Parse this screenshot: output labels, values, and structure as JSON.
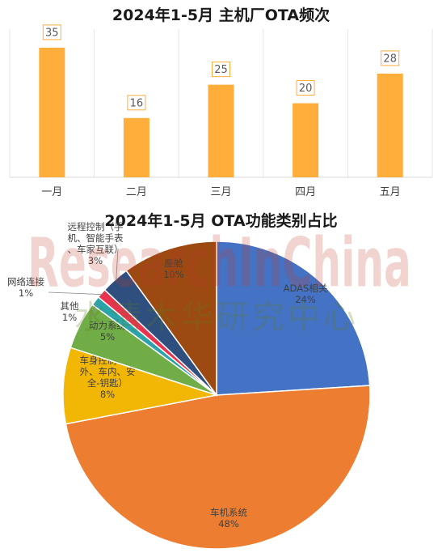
{
  "charts": {
    "bar_title": "2024年1-5月 主机厂OTA频次",
    "pie_title": "2024年1-5月 OTA功能类别占比"
  },
  "watermark": {
    "line1": "ResearchInChina",
    "line2": "水清木华研究中心"
  },
  "chart_data": [
    {
      "type": "bar",
      "title": "2024年1-5月 主机厂OTA频次",
      "categories": [
        "一月",
        "二月",
        "三月",
        "四月",
        "五月"
      ],
      "values": [
        35,
        16,
        25,
        20,
        28
      ],
      "ylim": [
        0,
        40
      ],
      "grid": false,
      "colors": {
        "bar": "#FFAE3C",
        "label_border": "#FFAE3C"
      }
    },
    {
      "type": "pie",
      "title": "2024年1-5月 OTA功能类别占比",
      "slices": [
        {
          "label": "ADAS相关",
          "value": 24,
          "pct_text": "24%",
          "color": "#4472C4"
        },
        {
          "label": "车机系统",
          "value": 48,
          "pct_text": "48%",
          "color": "#ED7D31"
        },
        {
          "label": "车身控制（车外、车内、安全-钥匙）",
          "value": 8,
          "pct_text": "8%",
          "color": "#F2B705"
        },
        {
          "label": "动力系统",
          "value": 5,
          "pct_text": "5%",
          "color": "#70AD47"
        },
        {
          "label": "其他",
          "value": 1,
          "pct_text": "1%",
          "color": "#2BA3A8"
        },
        {
          "label": "网络连接",
          "value": 1,
          "pct_text": "1%",
          "color": "#E8344E"
        },
        {
          "label": "远程控制（手机、智能手表、车家互联）",
          "value": 3,
          "pct_text": "3%",
          "color": "#2F4F7F"
        },
        {
          "label": "座舱",
          "value": 10,
          "pct_text": "10%",
          "color": "#9C4A12"
        }
      ]
    }
  ]
}
